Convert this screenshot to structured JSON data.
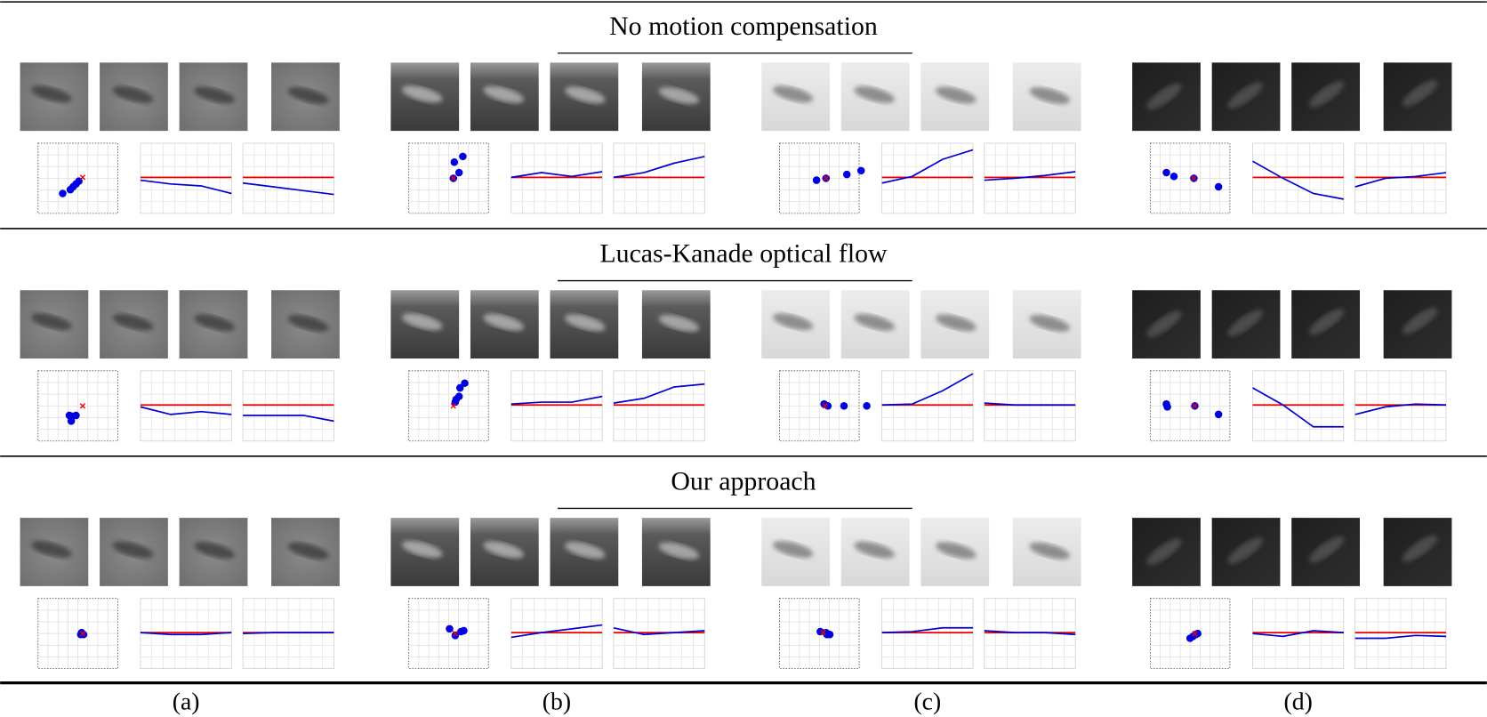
{
  "rows": [
    {
      "title": "No motion compensation",
      "panels": [
        {
          "points_x": [
            -16,
            -8,
            -5,
            -2,
            1
          ],
          "points_y": [
            -16,
            -12,
            -9,
            -6,
            -3
          ],
          "ref_x": 5,
          "ref_y": 1,
          "curve1": [
            -3,
            -7,
            -9,
            -17
          ],
          "curve2": [
            -6,
            -10,
            -14,
            -18
          ]
        },
        {
          "points_x": [
            6,
            15,
            11,
            5
          ],
          "points_y": [
            17,
            23,
            6,
            0
          ],
          "ref_x": 5,
          "ref_y": 0,
          "curve1": [
            0,
            5,
            1,
            6
          ],
          "curve2": [
            0,
            5,
            15,
            22
          ]
        },
        {
          "points_x": [
            -3,
            7,
            29,
            44
          ],
          "points_y": [
            -2,
            0,
            4,
            8
          ],
          "ref_x": 7,
          "ref_y": 0,
          "curve1": [
            -6,
            1,
            19,
            29
          ],
          "curve2": [
            -3,
            -1,
            2,
            6
          ]
        },
        {
          "points_x": [
            -25,
            -17,
            4,
            30
          ],
          "points_y": [
            6,
            2,
            0,
            -9
          ],
          "ref_x": 4,
          "ref_y": 0,
          "curve1": [
            17,
            -1,
            -17,
            -23
          ],
          "curve2": [
            -10,
            -1,
            1,
            5
          ]
        }
      ]
    },
    {
      "title": "Lucas-Kanade optical flow",
      "panels": [
        {
          "points_x": [
            -9,
            -6,
            -2,
            -7
          ],
          "points_y": [
            -10,
            -11,
            -10,
            -16
          ],
          "ref_x": 5,
          "ref_y": 0,
          "curve1": [
            -2,
            -10,
            -7,
            -10
          ],
          "curve2": [
            -11,
            -11,
            -11,
            -17
          ]
        },
        {
          "points_x": [
            17,
            12,
            11,
            7,
            8
          ],
          "points_y": [
            24,
            19,
            10,
            4,
            7
          ],
          "ref_x": 5,
          "ref_y": 0,
          "curve1": [
            1,
            3,
            3,
            9
          ],
          "curve2": [
            2,
            7,
            19,
            22
          ]
        },
        {
          "points_x": [
            5,
            9,
            26,
            50
          ],
          "points_y": [
            2,
            0,
            0,
            0
          ],
          "ref_x": 6,
          "ref_y": 0,
          "curve1": [
            0,
            1,
            15,
            33
          ],
          "curve2": [
            2,
            0,
            0,
            0
          ]
        },
        {
          "points_x": [
            -25,
            -24,
            5,
            30
          ],
          "points_y": [
            2,
            -1,
            0,
            -9
          ],
          "ref_x": 5,
          "ref_y": 0,
          "curve1": [
            18,
            0,
            -23,
            -23
          ],
          "curve2": [
            -10,
            -2,
            1,
            0
          ]
        }
      ]
    },
    {
      "title": "Our approach",
      "panels": [
        {
          "points_x": [
            4,
            6,
            3
          ],
          "points_y": [
            1,
            -1,
            -1
          ],
          "ref_x": 5,
          "ref_y": 0,
          "curve1": [
            0,
            -2,
            -2,
            0
          ],
          "curve2": [
            -1,
            0,
            0,
            0
          ]
        },
        {
          "points_x": [
            1,
            7,
            13,
            16
          ],
          "points_y": [
            5,
            -2,
            2,
            3
          ],
          "ref_x": 7,
          "ref_y": 0,
          "curve1": [
            -5,
            0,
            4,
            8
          ],
          "curve2": [
            5,
            -2,
            0,
            2
          ]
        },
        {
          "points_x": [
            1,
            7,
            11,
            8
          ],
          "points_y": [
            2,
            1,
            -1,
            -1
          ],
          "ref_x": 4,
          "ref_y": 1,
          "curve1": [
            0,
            1,
            5,
            5
          ],
          "curve2": [
            2,
            0,
            0,
            -2
          ]
        },
        {
          "points_x": [
            0,
            3,
            6,
            8
          ],
          "points_y": [
            -5,
            -3,
            -1,
            0
          ],
          "ref_x": 5,
          "ref_y": 0,
          "curve1": [
            -1,
            -4,
            2,
            0
          ],
          "curve2": [
            -6,
            -6,
            -3,
            -4
          ]
        }
      ]
    }
  ],
  "reference_level": 0,
  "column_labels": [
    "(a)",
    "(b)",
    "(c)",
    "(d)"
  ]
}
